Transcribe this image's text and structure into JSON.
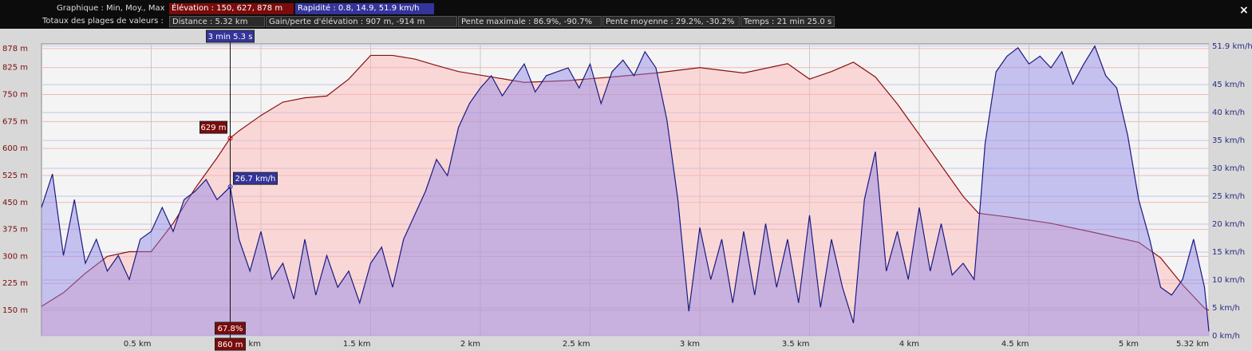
{
  "header": {
    "graph": "Graphique : Min, Moy., Max",
    "elevation": "Élévation : 150, 627, 878 m",
    "speed": "Rapidité : 0.8, 14.9, 51.9 km/h",
    "totals": "Totaux des plages de valeurs :",
    "distance": "Distance : 5.32 km",
    "gain": "Gain/perte d'élévation : 907 m, -914 m",
    "max_slope": "Pente maximale : 86.9%, -90.7%",
    "avg_slope": "Pente moyenne : 29.2%, -30.2%",
    "time": "Temps : 21 min 25.0 s",
    "close": "×"
  },
  "chart_data": {
    "type": "area",
    "xlim": [
      0,
      5.32
    ],
    "xticks": [
      {
        "value": 0.5,
        "label": "0.5 km"
      },
      {
        "value": 1,
        "label": "1 km"
      },
      {
        "value": 1.5,
        "label": "1.5 km"
      },
      {
        "value": 2,
        "label": "2 km"
      },
      {
        "value": 2.5,
        "label": "2.5 km"
      },
      {
        "value": 3,
        "label": "3 km"
      },
      {
        "value": 3.5,
        "label": "3.5 km"
      },
      {
        "value": 4,
        "label": "4 km"
      },
      {
        "value": 4.5,
        "label": "4.5 km"
      },
      {
        "value": 5,
        "label": "5 km"
      },
      {
        "value": 5.32,
        "label": "5.32 km"
      }
    ],
    "ylim": [
      79,
      891
    ],
    "yticks": [
      {
        "value": 150,
        "label": "150 m"
      },
      {
        "value": 225,
        "label": "225 m"
      },
      {
        "value": 300,
        "label": "300 m"
      },
      {
        "value": 375,
        "label": "375 m"
      },
      {
        "value": 450,
        "label": "450 m"
      },
      {
        "value": 525,
        "label": "525 m"
      },
      {
        "value": 600,
        "label": "600 m"
      },
      {
        "value": 675,
        "label": "675 m"
      },
      {
        "value": 750,
        "label": "750 m"
      },
      {
        "value": 825,
        "label": "825 m"
      },
      {
        "value": 878,
        "label": "878 m"
      }
    ],
    "y2lim": [
      0,
      52.3
    ],
    "y2ticks": [
      {
        "value": 0,
        "label": "0 km/h"
      },
      {
        "value": 5,
        "label": "5 km/h"
      },
      {
        "value": 10,
        "label": "10 km/h"
      },
      {
        "value": 15,
        "label": "15 km/h"
      },
      {
        "value": 20,
        "label": "20 km/h"
      },
      {
        "value": 25,
        "label": "25 km/h"
      },
      {
        "value": 30,
        "label": "30 km/h"
      },
      {
        "value": 35,
        "label": "35 km/h"
      },
      {
        "value": 40,
        "label": "40 km/h"
      },
      {
        "value": 45,
        "label": "45 km/h"
      },
      {
        "value": 51.9,
        "label": "51.9 km/h"
      }
    ],
    "grid": true,
    "series": [
      {
        "color": "#8b1010",
        "fill": "#ffb4b4",
        "axis": "y",
        "x": [
          0,
          0.1,
          0.2,
          0.3,
          0.4,
          0.5,
          0.6,
          0.7,
          0.8,
          0.86,
          0.9,
          1.0,
          1.1,
          1.2,
          1.3,
          1.4,
          1.5,
          1.6,
          1.7,
          1.8,
          1.9,
          2.0,
          2.2,
          2.4,
          2.6,
          2.8,
          3.0,
          3.2,
          3.4,
          3.5,
          3.6,
          3.7,
          3.8,
          3.9,
          4.0,
          4.1,
          4.2,
          4.27,
          4.4,
          4.6,
          4.8,
          5.0,
          5.1,
          5.2,
          5.3,
          5.32
        ],
        "values": [
          161,
          199,
          253,
          300,
          313,
          313,
          392,
          489,
          574,
          629,
          649,
          692,
          729,
          741,
          746,
          793,
          859,
          859,
          849,
          831,
          814,
          804,
          784,
          789,
          799,
          810,
          825,
          810,
          836,
          793,
          814,
          840,
          799,
          724,
          639,
          553,
          467,
          420,
          410,
          392,
          366,
          339,
          296,
          221,
          156,
          150
        ]
      },
      {
        "color": "#1a1a80",
        "fill": "#8c82e6",
        "axis": "y2",
        "x": [
          0,
          0.05,
          0.1,
          0.15,
          0.2,
          0.25,
          0.3,
          0.35,
          0.4,
          0.45,
          0.5,
          0.55,
          0.6,
          0.65,
          0.7,
          0.75,
          0.8,
          0.86,
          0.9,
          0.95,
          1.0,
          1.05,
          1.1,
          1.15,
          1.2,
          1.25,
          1.3,
          1.35,
          1.4,
          1.45,
          1.5,
          1.55,
          1.6,
          1.65,
          1.7,
          1.75,
          1.8,
          1.85,
          1.9,
          1.95,
          2.0,
          2.05,
          2.1,
          2.15,
          2.2,
          2.25,
          2.3,
          2.35,
          2.4,
          2.45,
          2.5,
          2.55,
          2.6,
          2.65,
          2.7,
          2.75,
          2.8,
          2.85,
          2.9,
          2.95,
          3.0,
          3.05,
          3.1,
          3.15,
          3.2,
          3.25,
          3.3,
          3.35,
          3.4,
          3.45,
          3.5,
          3.55,
          3.6,
          3.65,
          3.7,
          3.75,
          3.8,
          3.85,
          3.9,
          3.95,
          4.0,
          4.05,
          4.1,
          4.15,
          4.2,
          4.25,
          4.28,
          4.3,
          4.35,
          4.4,
          4.45,
          4.5,
          4.55,
          4.6,
          4.65,
          4.7,
          4.75,
          4.8,
          4.85,
          4.9,
          4.95,
          5.0,
          5.05,
          5.1,
          5.15,
          5.2,
          5.25,
          5.3,
          5.32
        ],
        "values": [
          23,
          29,
          14.4,
          24.4,
          13,
          17.3,
          11.6,
          14.4,
          10.1,
          17.3,
          18.7,
          23,
          18.7,
          24.4,
          25.9,
          28,
          24.4,
          26.7,
          17.3,
          11.6,
          18.7,
          10.1,
          13,
          6.6,
          17.3,
          7.3,
          14.4,
          8.7,
          11.6,
          5.9,
          13,
          15.9,
          8.7,
          17.3,
          21.6,
          25.9,
          31.6,
          28.7,
          37.3,
          41.6,
          44.4,
          46.6,
          43,
          45.9,
          48.7,
          43.7,
          46.6,
          47.3,
          48,
          44.4,
          48.7,
          41.6,
          47.3,
          49.4,
          46.6,
          50.9,
          48,
          38.7,
          24.4,
          4.4,
          19.4,
          10.1,
          17.3,
          5.9,
          18.7,
          7.3,
          20.1,
          8.7,
          17.3,
          5.9,
          21.6,
          5.1,
          17.3,
          8.7,
          2.3,
          24.4,
          33,
          11.6,
          18.7,
          10.1,
          23,
          11.6,
          20.1,
          10.9,
          13,
          10.1,
          24.4,
          34.4,
          47.3,
          50.1,
          51.6,
          48.7,
          50.1,
          48,
          50.9,
          45.1,
          48.7,
          51.9,
          46.6,
          44.4,
          35.9,
          24.4,
          17.3,
          8.7,
          7.3,
          10.1,
          17.3,
          8.7,
          0.8
        ]
      }
    ],
    "cursor": {
      "x": {
        "value": 0.86,
        "label": "860 m"
      },
      "elevation": {
        "value": 629,
        "label": "629 m"
      },
      "speed": {
        "value": 26.7,
        "label": "26.7 km/h"
      },
      "slope": "67.8%",
      "time": "3 min 5.3 s"
    }
  }
}
